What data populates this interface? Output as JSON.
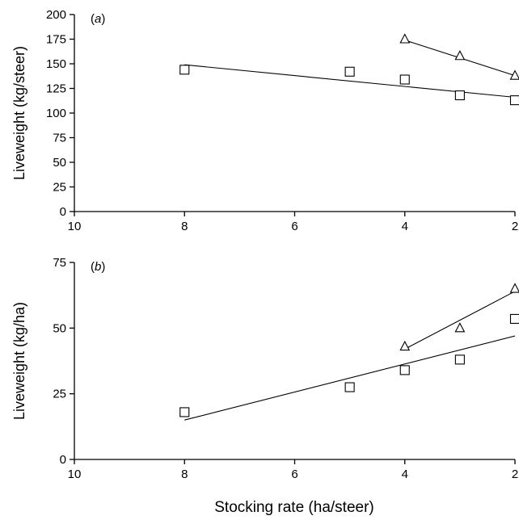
{
  "chart_data": [
    {
      "type": "scatter",
      "panel_label": "a",
      "ylabel": "Liveweight (kg/steer)",
      "xlabel": "",
      "xlim": [
        10,
        2
      ],
      "ylim": [
        0,
        200
      ],
      "xticks": [
        10,
        8,
        6,
        4,
        2
      ],
      "yticks": [
        0,
        25,
        50,
        75,
        100,
        125,
        150,
        175,
        200
      ],
      "grid": false,
      "series": [
        {
          "marker": "square",
          "points": [
            [
              8,
              144
            ],
            [
              5,
              142
            ],
            [
              4,
              134
            ],
            [
              3,
              118
            ],
            [
              2,
              113
            ]
          ],
          "fit_line": [
            [
              8,
              149
            ],
            [
              2,
              116
            ]
          ]
        },
        {
          "marker": "triangle",
          "points": [
            [
              4,
              175
            ],
            [
              3,
              158
            ],
            [
              2,
              138
            ]
          ],
          "fit_line": [
            [
              4,
              174
            ],
            [
              2,
              138
            ]
          ]
        }
      ]
    },
    {
      "type": "scatter",
      "panel_label": "b",
      "ylabel": "Liveweight (kg/ha)",
      "xlabel": "Stocking rate (ha/steer)",
      "xlim": [
        10,
        2
      ],
      "ylim": [
        0,
        75
      ],
      "xticks": [
        10,
        8,
        6,
        4,
        2
      ],
      "yticks": [
        0,
        25,
        50,
        75
      ],
      "grid": false,
      "series": [
        {
          "marker": "square",
          "points": [
            [
              8,
              18
            ],
            [
              5,
              27.5
            ],
            [
              4,
              34
            ],
            [
              3,
              38
            ],
            [
              2,
              53.5
            ]
          ],
          "fit_line": [
            [
              8,
              15
            ],
            [
              2,
              47
            ]
          ]
        },
        {
          "marker": "triangle",
          "points": [
            [
              4,
              43
            ],
            [
              3,
              50
            ],
            [
              2,
              65
            ]
          ],
          "fit_line": [
            [
              4,
              42
            ],
            [
              2,
              64
            ]
          ]
        }
      ]
    }
  ]
}
